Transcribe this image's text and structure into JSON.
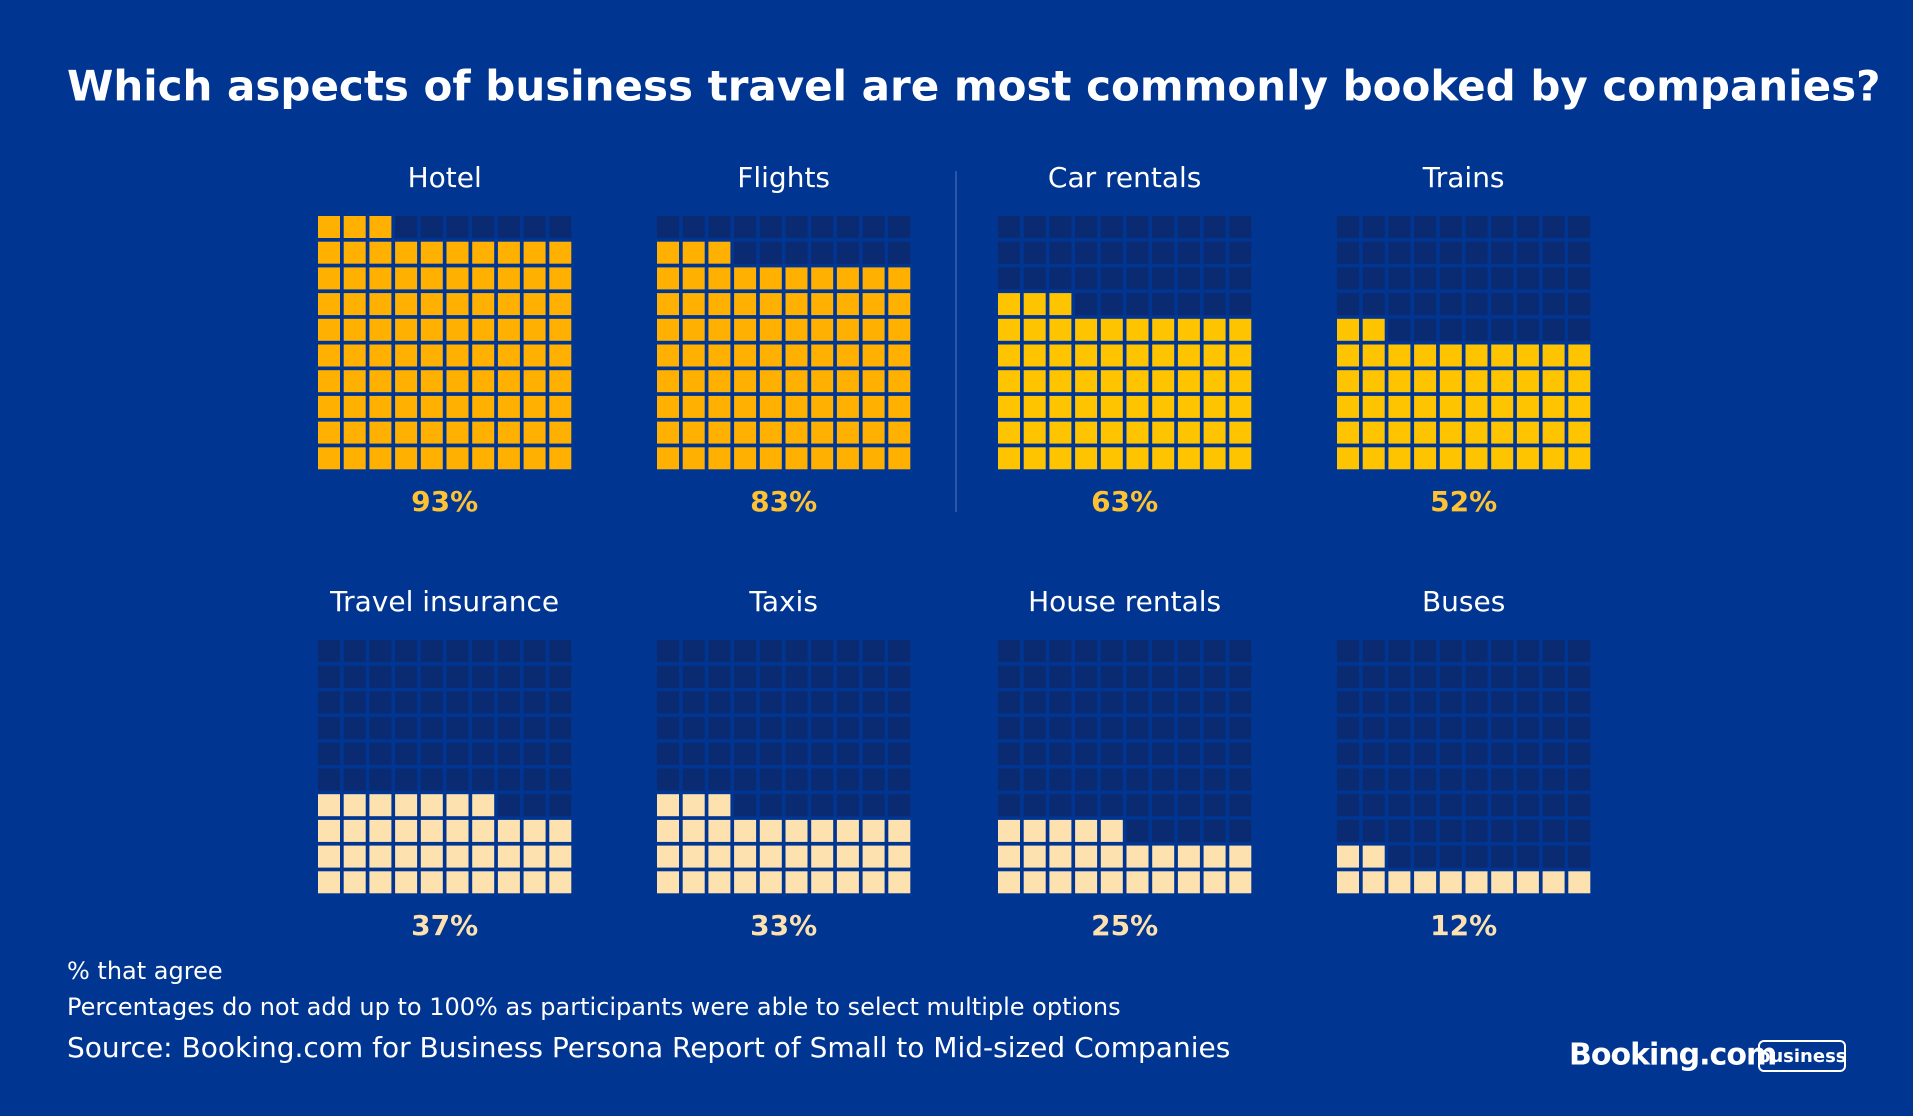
{
  "chart_data": {
    "type": "waffle",
    "title": "Which aspects of business travel are most commonly booked by companies?",
    "categories": [
      "Hotel",
      "Flights",
      "Car rentals",
      "Trains",
      "Travel insurance",
      "Taxis",
      "House rentals",
      "Buses"
    ],
    "values": [
      93,
      83,
      63,
      52,
      37,
      33,
      25,
      12
    ],
    "value_labels": [
      "93%",
      "83%",
      "63%",
      "52%",
      "37%",
      "33%",
      "25%",
      "12%"
    ],
    "colors": [
      "#ffb000",
      "#ffb000",
      "#ffc400",
      "#ffc400",
      "#fde2b0",
      "#fde2b0",
      "#fde2b0",
      "#fde2b0"
    ],
    "label_colors": [
      "#ffc233",
      "#ffc233",
      "#ffc233",
      "#ffc233",
      "#fde2b0",
      "#fde2b0",
      "#fde2b0",
      "#fde2b0"
    ],
    "empty_color": "#0a2a72",
    "notes": [
      "% that agree",
      "Percentages do not add up to 100% as participants were able to select multiple options"
    ],
    "source": "Source: Booking.com for Business Persona Report of Small to Mid-sized Companies",
    "logo": {
      "brand": "Booking.com",
      "badge": "business"
    }
  }
}
